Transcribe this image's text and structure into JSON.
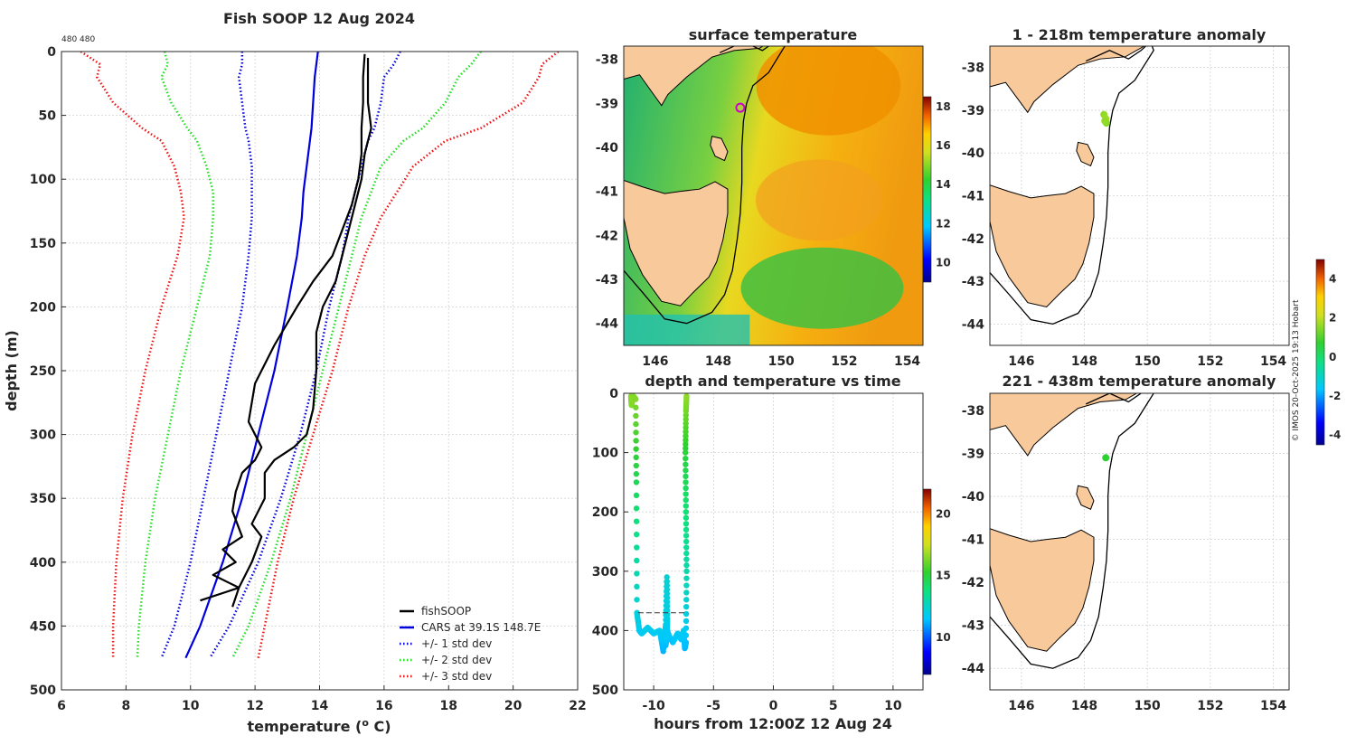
{
  "colors": {
    "fishsoop": "#000000",
    "cars": "#0000dd",
    "std1": "#0000dd",
    "std2": "#22dd22",
    "std3": "#ee1111",
    "land": "#f8c99a",
    "ocean_warm": "#f0a000",
    "ocean_cool": "#30c050"
  },
  "copyright": "© IMOS 20-Oct-2025 19:13 Hobart",
  "charts": [
    {
      "id": "profile",
      "type": "line",
      "title": "Fish SOOP 12 Aug 2024",
      "subtitle": "480 480",
      "xlabel": "temperature (° C)",
      "xlabel_parts": {
        "pre": "temperature (",
        "sup": "o",
        "post": " C)"
      },
      "ylabel": "depth (m)",
      "xlim": [
        6,
        22
      ],
      "ylim": [
        0,
        500
      ],
      "xticks": [
        6,
        8,
        10,
        12,
        14,
        16,
        18,
        20,
        22
      ],
      "yticks": [
        0,
        50,
        100,
        150,
        200,
        250,
        300,
        350,
        400,
        450,
        500
      ],
      "legend": [
        "fishSOOP",
        "CARS at 39.1S 148.7E",
        "+/- 1 std dev",
        "+/- 2 std dev",
        "+/- 3 std dev"
      ],
      "depths": [
        0,
        10,
        20,
        40,
        60,
        70,
        90,
        110,
        130,
        160,
        200,
        250,
        300,
        350,
        400,
        450,
        475
      ],
      "cars": [
        13.95,
        13.9,
        13.85,
        13.8,
        13.75,
        13.7,
        13.6,
        13.5,
        13.45,
        13.3,
        13.0,
        12.6,
        12.1,
        11.6,
        11.0,
        10.3,
        9.85
      ],
      "std1_minus": [
        11.6,
        11.6,
        11.5,
        11.6,
        11.7,
        11.8,
        11.9,
        11.9,
        11.9,
        11.8,
        11.6,
        11.2,
        10.8,
        10.4,
        10.0,
        9.5,
        9.1
      ],
      "std1_plus": [
        16.5,
        16.3,
        16.0,
        15.9,
        15.7,
        15.5,
        15.3,
        15.1,
        14.9,
        14.7,
        14.3,
        13.9,
        13.4,
        12.8,
        12.1,
        11.2,
        10.6
      ],
      "std2_minus": [
        9.2,
        9.3,
        9.1,
        9.4,
        9.9,
        10.2,
        10.5,
        10.7,
        10.7,
        10.6,
        10.2,
        9.7,
        9.3,
        8.9,
        8.6,
        8.4,
        8.35
      ],
      "std2_plus": [
        19.0,
        18.7,
        18.3,
        17.9,
        17.2,
        16.6,
        15.9,
        15.6,
        15.3,
        15.0,
        14.6,
        14.1,
        13.6,
        13.1,
        12.5,
        11.8,
        11.3
      ],
      "std3_minus": [
        6.6,
        7.2,
        7.1,
        7.6,
        8.5,
        9.1,
        9.5,
        9.7,
        9.8,
        9.6,
        9.1,
        8.6,
        8.2,
        7.9,
        7.7,
        7.6,
        7.6
      ],
      "std3_plus": [
        21.4,
        20.9,
        20.8,
        20.3,
        19.0,
        17.9,
        16.9,
        16.4,
        15.9,
        15.4,
        14.9,
        14.4,
        13.8,
        13.2,
        12.7,
        12.3,
        12.1
      ],
      "fishsoop_down": {
        "depth": [
          2,
          20,
          40,
          60,
          80,
          100,
          120,
          140,
          160,
          180,
          200,
          230,
          260,
          290,
          310,
          320,
          330,
          345,
          360,
          380,
          390,
          400,
          410,
          420,
          430
        ],
        "temp": [
          15.4,
          15.35,
          15.35,
          15.3,
          15.3,
          15.2,
          15.0,
          14.7,
          14.4,
          13.8,
          13.3,
          12.6,
          12.0,
          11.8,
          12.2,
          12.0,
          11.6,
          11.4,
          11.3,
          11.6,
          11.0,
          11.4,
          10.7,
          11.5,
          10.3
        ]
      },
      "fishsoop_up": {
        "depth": [
          435,
          420,
          400,
          380,
          370,
          350,
          330,
          320,
          310,
          300,
          280,
          250,
          220,
          200,
          180,
          160,
          140,
          120,
          100,
          80,
          60,
          40,
          20,
          5
        ],
        "temp": [
          11.3,
          11.5,
          11.9,
          12.2,
          11.9,
          12.3,
          12.3,
          12.6,
          13.2,
          13.6,
          13.8,
          13.9,
          13.9,
          14.1,
          14.5,
          14.7,
          14.9,
          15.1,
          15.3,
          15.4,
          15.6,
          15.5,
          15.5,
          15.5
        ]
      }
    },
    {
      "id": "sst_map",
      "type": "heatmap",
      "title": "surface temperature",
      "xlim": [
        145,
        154.5
      ],
      "ylim": [
        -44.5,
        -37.7
      ],
      "xticks": [
        146,
        148,
        150,
        152,
        154
      ],
      "yticks": [
        -38,
        -39,
        -40,
        -41,
        -42,
        -43,
        -44
      ],
      "colorbar": {
        "range": [
          9,
          18.5
        ],
        "ticks": [
          10,
          12,
          14,
          16,
          18
        ]
      },
      "marker": {
        "lon": 148.7,
        "lat": -39.1
      }
    },
    {
      "id": "depth_time",
      "type": "scatter",
      "title": "depth and temperature vs time",
      "xlabel": "hours from 12:00Z 12 Aug 24",
      "xlim": [
        -12.5,
        12.5
      ],
      "ylim": [
        0,
        500
      ],
      "xticks": [
        -10,
        -5,
        0,
        5,
        10
      ],
      "yticks": [
        0,
        100,
        200,
        300,
        400,
        500
      ],
      "colorbar": {
        "range": [
          7,
          22
        ],
        "ticks": [
          10,
          15,
          20
        ]
      },
      "dashed_depth": 370,
      "track": {
        "hours": [
          -11.9,
          -11.85,
          -11.7,
          -11.5,
          -11.45,
          -11.4,
          -11.2,
          -11.0,
          -10.5,
          -10.0,
          -9.5,
          -9.2,
          -9.0,
          -8.9,
          -8.85,
          -8.9,
          -9.0,
          -8.95,
          -8.7,
          -8.4,
          -8.0,
          -7.7,
          -7.5,
          -7.4,
          -7.3,
          -7.25,
          -7.3,
          -7.35,
          -7.3,
          -7.25
        ],
        "depth": [
          5,
          20,
          5,
          10,
          150,
          370,
          400,
          405,
          395,
          405,
          400,
          435,
          390,
          310,
          380,
          410,
          425,
          395,
          410,
          420,
          405,
          415,
          400,
          430,
          420,
          300,
          200,
          100,
          30,
          2
        ],
        "temp": [
          16.5,
          16.4,
          16.5,
          16.4,
          14.5,
          12.2,
          11.8,
          11.7,
          11.9,
          11.7,
          11.8,
          11.2,
          12.0,
          12.3,
          12.0,
          11.6,
          11.3,
          11.8,
          11.6,
          11.4,
          11.7,
          11.5,
          11.8,
          11.3,
          11.4,
          13.0,
          13.9,
          15.0,
          16.2,
          16.6
        ]
      }
    },
    {
      "id": "anom_shallow",
      "type": "scatter",
      "title": "1 - 218m temperature anomaly",
      "xlim": [
        145,
        154.5
      ],
      "ylim": [
        -44.5,
        -37.5
      ],
      "xticks": [
        146,
        148,
        150,
        152,
        154
      ],
      "yticks": [
        -38,
        -39,
        -40,
        -41,
        -42,
        -43,
        -44
      ],
      "points": {
        "lon": [
          148.62,
          148.68,
          148.7,
          148.65
        ],
        "lat": [
          -39.1,
          -39.2,
          -39.3,
          -39.25
        ],
        "anomaly": [
          1.6,
          1.7,
          1.5,
          1.6
        ]
      }
    },
    {
      "id": "anom_deep",
      "type": "scatter",
      "title": "221 - 438m temperature anomaly",
      "xlim": [
        145,
        154.5
      ],
      "ylim": [
        -44.5,
        -37.6
      ],
      "xticks": [
        146,
        148,
        150,
        152,
        154
      ],
      "yticks": [
        -38,
        -39,
        -40,
        -41,
        -42,
        -43,
        -44
      ],
      "points": {
        "lon": [
          148.68
        ],
        "lat": [
          -39.1
        ],
        "anomaly": [
          0.7
        ]
      }
    },
    {
      "id": "anom_colorbar",
      "type": "colorbar",
      "range": [
        -4.5,
        5
      ],
      "ticks": [
        -4,
        -2,
        0,
        2,
        4
      ]
    }
  ]
}
